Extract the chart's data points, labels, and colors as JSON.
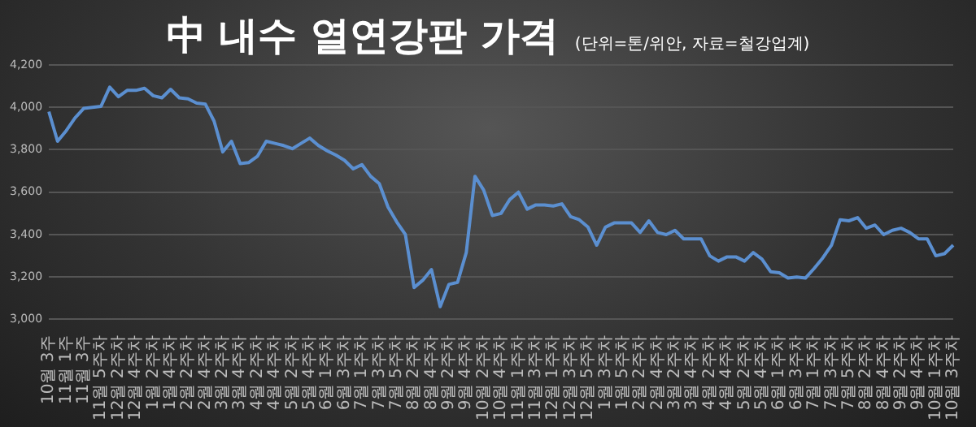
{
  "chart_data": {
    "type": "line",
    "title": "中 내수 열연강판 가격",
    "subtitle": "(단위=톤/위안, 자료=철강업계)",
    "categories": [
      "10월 3주",
      null,
      "11월 1주",
      null,
      "11월 3주",
      null,
      "11월 5주차",
      null,
      "12월 2주차",
      null,
      "12월 4주차",
      null,
      "1월 2주차",
      null,
      "1월 4주차",
      null,
      "2월 2주차",
      null,
      "2월 4주차",
      null,
      "3월 2주차",
      null,
      "3월 4주차",
      null,
      "4월 2주차",
      null,
      "4월 4주차",
      null,
      "5월 2주차",
      null,
      "5월 4주차",
      null,
      "6월 1주차",
      null,
      "6월 3주차",
      null,
      "7월 1주차",
      null,
      "7월 3주차",
      null,
      "7월 5주차",
      null,
      "8월 2주차",
      null,
      "8월 4주차",
      null,
      "9월 2주차",
      null,
      "9월 4주차",
      null,
      "10월 2주차",
      null,
      "10월 4주차",
      null,
      "11월 1주차",
      null,
      "11월 3주차",
      null,
      "12월 1주차",
      null,
      "12월 3주차",
      null,
      "12월 5주차",
      null,
      "1월 3주차",
      null,
      "1월 5주차",
      null,
      "2월 2주차",
      null,
      "2월 4주차",
      null,
      "3월 2주차",
      null,
      "3월 4주차",
      null,
      "4월 2주차",
      null,
      "4월 4주차",
      null,
      "5월 2주차",
      null,
      "5월 4주차",
      null,
      "6월 1주차",
      null,
      "6월 3주차",
      null,
      "7월 1주차",
      null,
      "7월 3주차",
      null,
      "7월 5주차",
      null,
      "8월 2주차",
      null,
      "8월 4주차",
      null,
      "9월 2주차",
      null,
      "9월 4주차",
      null,
      "10월 1주차",
      null,
      "10월 3주차"
    ],
    "series": [
      {
        "color": "#5b8fd0",
        "values": [
          3980,
          3840,
          3890,
          3950,
          3995,
          4000,
          4005,
          4095,
          4050,
          4080,
          4080,
          4090,
          4055,
          4045,
          4085,
          4045,
          4040,
          4020,
          4015,
          3935,
          3790,
          3840,
          3735,
          3740,
          3770,
          3840,
          3830,
          3820,
          3805,
          3830,
          3855,
          3820,
          3795,
          3775,
          3750,
          3710,
          3730,
          3675,
          3640,
          3530,
          3460,
          3400,
          3150,
          3185,
          3235,
          3060,
          3165,
          3175,
          3315,
          3675,
          3610,
          3490,
          3500,
          3565,
          3600,
          3520,
          3540,
          3540,
          3535,
          3545,
          3485,
          3470,
          3435,
          3350,
          3435,
          3455,
          3455,
          3455,
          3410,
          3465,
          3410,
          3400,
          3420,
          3380,
          3380,
          3380,
          3300,
          3275,
          3295,
          3295,
          3275,
          3315,
          3285,
          3225,
          3220,
          3195,
          3200,
          3195,
          3240,
          3290,
          3350,
          3470,
          3465,
          3480,
          3430,
          3445,
          3400,
          3420,
          3430,
          3410,
          3380,
          3380,
          3300,
          3310,
          3350
        ]
      }
    ],
    "ylim": [
      3000,
      4200
    ],
    "yticks": [
      {
        "value": 3000,
        "label": "3,000"
      },
      {
        "value": 3200,
        "label": "3,200"
      },
      {
        "value": 3400,
        "label": "3,400"
      },
      {
        "value": 3600,
        "label": "3,600"
      },
      {
        "value": 3800,
        "label": "3,800"
      },
      {
        "value": 4000,
        "label": "4,000"
      },
      {
        "value": 4200,
        "label": "4,200"
      }
    ],
    "grid": "y",
    "legend": false,
    "marker": "none",
    "line_style": "solid"
  }
}
